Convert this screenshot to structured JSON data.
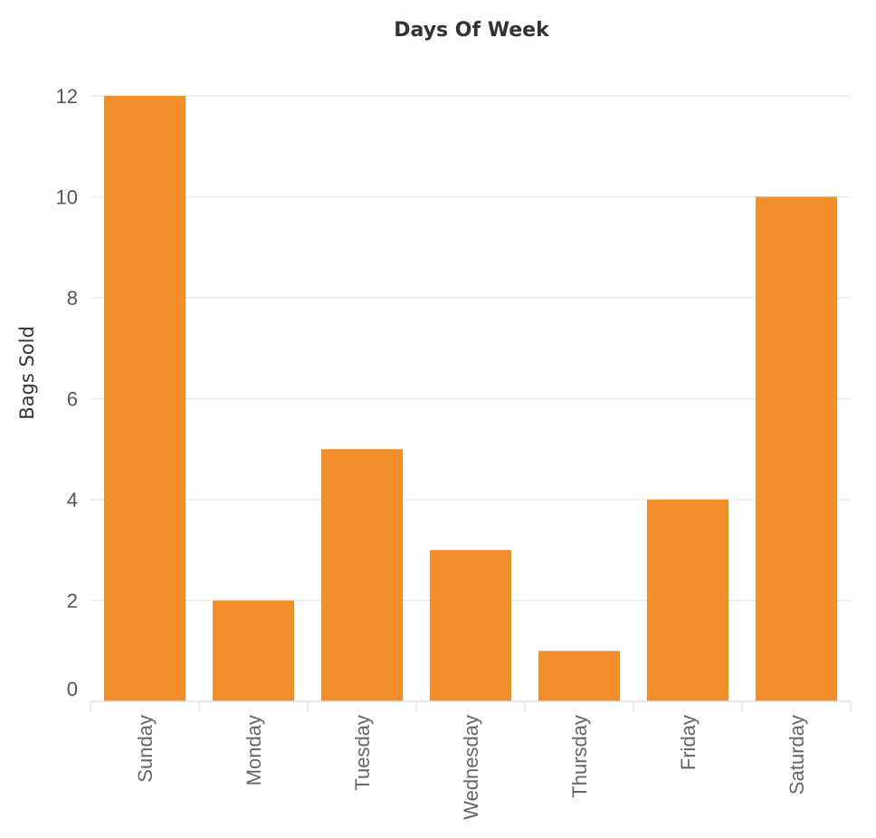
{
  "chart_data": {
    "type": "bar",
    "title": "Days Of Week",
    "xlabel": "",
    "ylabel": "Bags Sold",
    "categories": [
      "Sunday",
      "Monday",
      "Tuesday",
      "Wednesday",
      "Thursday",
      "Friday",
      "Saturday"
    ],
    "values": [
      12,
      2,
      5,
      3,
      1,
      4,
      10
    ],
    "yticks": [
      0,
      2,
      4,
      6,
      8,
      10,
      12
    ],
    "ylim": [
      0,
      12
    ],
    "grid": true,
    "bar_color": "#F28E2B"
  }
}
